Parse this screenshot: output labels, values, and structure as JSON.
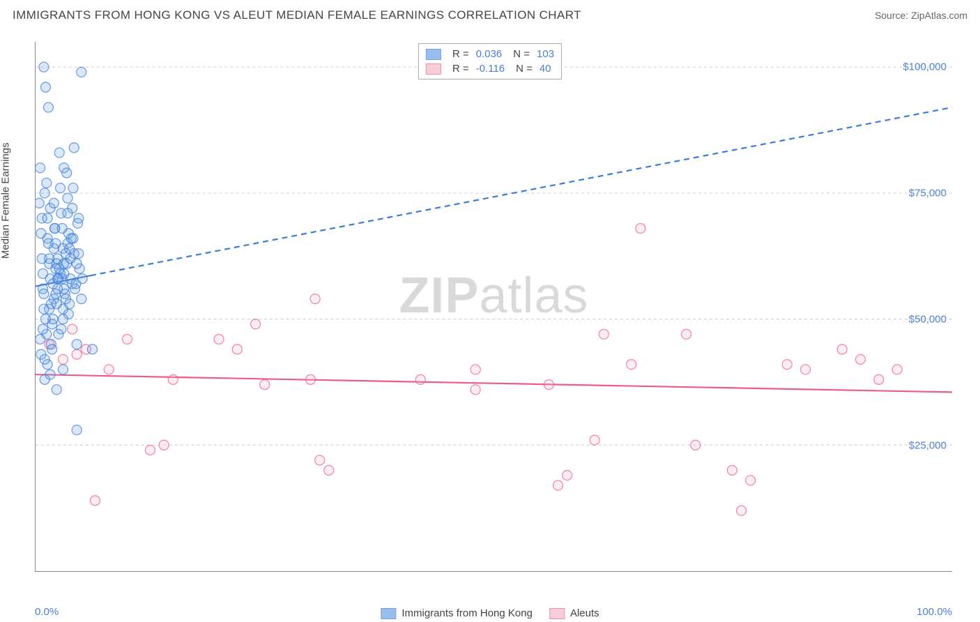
{
  "header": {
    "title": "IMMIGRANTS FROM HONG KONG VS ALEUT MEDIAN FEMALE EARNINGS CORRELATION CHART",
    "source_prefix": "Source: ",
    "source_name": "ZipAtlas.com"
  },
  "watermark": {
    "zip": "ZIP",
    "atlas": "atlas"
  },
  "chart": {
    "type": "scatter",
    "background_color": "#ffffff",
    "grid_color": "#cccccc",
    "axis_color": "#888888",
    "xlim": [
      0,
      100
    ],
    "ylim": [
      0,
      105000
    ],
    "x_ticks": [
      0,
      16.67,
      33.33,
      50,
      66.67,
      83.33,
      100
    ],
    "x_tick_labels_shown": {
      "left": "0.0%",
      "right": "100.0%"
    },
    "y_ticks": [
      25000,
      50000,
      75000,
      100000
    ],
    "y_tick_labels": [
      "$25,000",
      "$50,000",
      "$75,000",
      "$100,000"
    ],
    "y_axis_label": "Median Female Earnings",
    "label_fontsize": 15,
    "tick_label_color": "#4a7cd8",
    "marker_radius": 7,
    "marker_fill_opacity": 0.25,
    "marker_stroke_width": 1.3,
    "series": [
      {
        "name": "Immigrants from Hong Kong",
        "color": "#6fa3e8",
        "stroke": "#3d7bd9",
        "stats": {
          "R": "0.036",
          "N": "103"
        },
        "trend": {
          "x1": 0,
          "y1": 56500,
          "x2": 100,
          "y2": 92000,
          "solid_until_x": 6,
          "line_width": 2.2
        },
        "points": [
          [
            1.2,
            47000
          ],
          [
            0.8,
            56000
          ],
          [
            1.5,
            61000
          ],
          [
            2.0,
            54000
          ],
          [
            0.7,
            70000
          ],
          [
            1.8,
            49000
          ],
          [
            2.5,
            58000
          ],
          [
            1.0,
            75000
          ],
          [
            3.0,
            52000
          ],
          [
            1.3,
            66000
          ],
          [
            0.5,
            80000
          ],
          [
            2.2,
            60000
          ],
          [
            1.7,
            45000
          ],
          [
            3.2,
            55000
          ],
          [
            2.8,
            48000
          ],
          [
            1.1,
            96000
          ],
          [
            1.4,
            92000
          ],
          [
            2.6,
            83000
          ],
          [
            3.5,
            65000
          ],
          [
            0.9,
            100000
          ],
          [
            1.6,
            72000
          ],
          [
            2.1,
            68000
          ],
          [
            2.4,
            62000
          ],
          [
            3.8,
            58000
          ],
          [
            4.2,
            84000
          ],
          [
            0.6,
            43000
          ],
          [
            1.9,
            50000
          ],
          [
            2.3,
            53000
          ],
          [
            3.1,
            56000
          ],
          [
            3.6,
            51000
          ],
          [
            0.4,
            73000
          ],
          [
            1.2,
            77000
          ],
          [
            2.0,
            64000
          ],
          [
            2.7,
            59000
          ],
          [
            3.3,
            54000
          ],
          [
            4.0,
            57000
          ],
          [
            4.5,
            45000
          ],
          [
            5.0,
            99000
          ],
          [
            0.8,
            48000
          ],
          [
            1.5,
            52000
          ],
          [
            2.2,
            55000
          ],
          [
            2.9,
            58000
          ],
          [
            3.4,
            61000
          ],
          [
            1.0,
            38000
          ],
          [
            1.3,
            41000
          ],
          [
            0.5,
            46000
          ],
          [
            1.8,
            44000
          ],
          [
            2.5,
            47000
          ],
          [
            3.0,
            50000
          ],
          [
            3.7,
            53000
          ],
          [
            4.3,
            56000
          ],
          [
            0.7,
            62000
          ],
          [
            1.4,
            65000
          ],
          [
            2.1,
            68000
          ],
          [
            2.8,
            71000
          ],
          [
            3.5,
            74000
          ],
          [
            4.1,
            76000
          ],
          [
            4.7,
            70000
          ],
          [
            0.9,
            55000
          ],
          [
            1.6,
            58000
          ],
          [
            2.3,
            61000
          ],
          [
            3.0,
            64000
          ],
          [
            3.6,
            67000
          ],
          [
            4.2,
            63000
          ],
          [
            4.8,
            60000
          ],
          [
            1.1,
            50000
          ],
          [
            1.7,
            53000
          ],
          [
            2.4,
            56000
          ],
          [
            3.1,
            59000
          ],
          [
            3.8,
            62000
          ],
          [
            4.4,
            57000
          ],
          [
            5.0,
            54000
          ],
          [
            0.6,
            67000
          ],
          [
            1.3,
            70000
          ],
          [
            2.0,
            73000
          ],
          [
            2.7,
            76000
          ],
          [
            3.4,
            79000
          ],
          [
            4.0,
            72000
          ],
          [
            4.6,
            69000
          ],
          [
            0.8,
            59000
          ],
          [
            1.5,
            62000
          ],
          [
            2.2,
            65000
          ],
          [
            2.9,
            68000
          ],
          [
            3.5,
            71000
          ],
          [
            4.1,
            66000
          ],
          [
            4.7,
            63000
          ],
          [
            1.0,
            42000
          ],
          [
            1.6,
            39000
          ],
          [
            2.3,
            36000
          ],
          [
            3.0,
            40000
          ],
          [
            3.1,
            80000
          ],
          [
            1.9,
            57000
          ],
          [
            2.6,
            60000
          ],
          [
            3.3,
            63000
          ],
          [
            3.9,
            66000
          ],
          [
            4.5,
            61000
          ],
          [
            5.1,
            58000
          ],
          [
            0.9,
            52000
          ],
          [
            4.5,
            28000
          ],
          [
            2.4,
            58000
          ],
          [
            3.1,
            61000
          ],
          [
            3.7,
            64000
          ],
          [
            6.2,
            44000
          ]
        ]
      },
      {
        "name": "Aleuts",
        "color": "#f5b8c8",
        "stroke": "#e95d8b",
        "stats": {
          "R": "-0.116",
          "N": "40"
        },
        "trend": {
          "x1": 0,
          "y1": 39000,
          "x2": 100,
          "y2": 35500,
          "solid_until_x": 100,
          "line_width": 2.2
        },
        "points": [
          [
            1.5,
            45000
          ],
          [
            3.0,
            42000
          ],
          [
            5.5,
            44000
          ],
          [
            8.0,
            40000
          ],
          [
            10.0,
            46000
          ],
          [
            6.5,
            14000
          ],
          [
            14.0,
            25000
          ],
          [
            15.0,
            38000
          ],
          [
            12.5,
            24000
          ],
          [
            20.0,
            46000
          ],
          [
            22.0,
            44000
          ],
          [
            25.0,
            37000
          ],
          [
            24.0,
            49000
          ],
          [
            30.0,
            38000
          ],
          [
            30.5,
            54000
          ],
          [
            31.0,
            22000
          ],
          [
            32.0,
            20000
          ],
          [
            42.0,
            38000
          ],
          [
            48.0,
            36000
          ],
          [
            48.0,
            40000
          ],
          [
            56.0,
            37000
          ],
          [
            57.0,
            17000
          ],
          [
            61.0,
            26000
          ],
          [
            62.0,
            47000
          ],
          [
            58.0,
            19000
          ],
          [
            65.0,
            41000
          ],
          [
            66.0,
            68000
          ],
          [
            71.0,
            47000
          ],
          [
            72.0,
            25000
          ],
          [
            76.0,
            20000
          ],
          [
            78.0,
            18000
          ],
          [
            77.0,
            12000
          ],
          [
            82.0,
            41000
          ],
          [
            84.0,
            40000
          ],
          [
            88.0,
            44000
          ],
          [
            90.0,
            42000
          ],
          [
            92.0,
            38000
          ],
          [
            94.0,
            40000
          ],
          [
            4.0,
            48000
          ],
          [
            4.5,
            43000
          ]
        ]
      }
    ]
  },
  "legend_top": {
    "R_label": "R =",
    "N_label": "N ="
  }
}
